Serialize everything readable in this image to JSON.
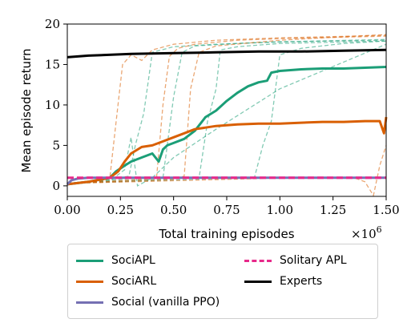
{
  "chart_data": {
    "type": "line",
    "xlabel": "Total training episodes",
    "x_multiplier_label": "×10",
    "x_multiplier_exp": "6",
    "ylabel": "Mean episode return",
    "xlim": [
      0,
      1.5
    ],
    "ylim": [
      -1.3,
      20
    ],
    "x_ticks": [
      0.0,
      0.25,
      0.5,
      0.75,
      1.0,
      1.25,
      1.5
    ],
    "x_tick_labels": [
      "0.00",
      "0.25",
      "0.50",
      "0.75",
      "1.00",
      "1.25",
      "1.50"
    ],
    "y_ticks": [
      0,
      5,
      10,
      15,
      20
    ],
    "y_tick_labels": [
      "0",
      "5",
      "10",
      "15",
      "20"
    ],
    "grid": false,
    "legend_position": "below",
    "series": [
      {
        "name": "SociAPL",
        "color": "#1b9e77",
        "style": "solid",
        "x": [
          0,
          0.1,
          0.2,
          0.23,
          0.27,
          0.3,
          0.35,
          0.4,
          0.43,
          0.45,
          0.47,
          0.5,
          0.55,
          0.6,
          0.65,
          0.7,
          0.75,
          0.8,
          0.85,
          0.9,
          0.94,
          0.96,
          1.0,
          1.1,
          1.2,
          1.3,
          1.4,
          1.5
        ],
        "y": [
          0.2,
          0.5,
          1.0,
          1.8,
          2.5,
          3.0,
          3.5,
          4.0,
          3.0,
          4.5,
          5.0,
          5.3,
          5.8,
          6.8,
          8.5,
          9.3,
          10.5,
          11.5,
          12.3,
          12.8,
          13.0,
          14.0,
          14.2,
          14.4,
          14.5,
          14.5,
          14.6,
          14.7
        ]
      },
      {
        "name": "SociARL",
        "color": "#d95f02",
        "style": "solid",
        "x": [
          0,
          0.1,
          0.2,
          0.24,
          0.27,
          0.3,
          0.35,
          0.4,
          0.45,
          0.5,
          0.55,
          0.6,
          0.65,
          0.7,
          0.8,
          0.9,
          1.0,
          1.1,
          1.2,
          1.3,
          1.4,
          1.47,
          1.49,
          1.5
        ],
        "y": [
          0.2,
          0.5,
          1.0,
          1.8,
          3.0,
          4.0,
          4.8,
          5.0,
          5.5,
          6.0,
          6.5,
          7.0,
          7.2,
          7.4,
          7.6,
          7.7,
          7.7,
          7.8,
          7.9,
          7.9,
          8.0,
          8.0,
          6.5,
          8.5
        ]
      },
      {
        "name": "Social (vanilla PPO)",
        "color": "#7570b3",
        "style": "solid",
        "x": [
          0,
          0.02,
          0.05,
          0.1,
          0.3,
          0.6,
          0.9,
          1.2,
          1.5
        ],
        "y": [
          0.2,
          0.7,
          0.9,
          1.0,
          1.0,
          1.0,
          1.0,
          1.0,
          1.0
        ]
      },
      {
        "name": "Solitary APL",
        "color": "#e7298a",
        "style": "dashed",
        "x": [
          0,
          0.3,
          0.6,
          0.9,
          1.2,
          1.5
        ],
        "y": [
          1.0,
          1.0,
          1.0,
          1.0,
          1.0,
          1.0
        ]
      },
      {
        "name": "Experts",
        "color": "#000000",
        "style": "solid",
        "x": [
          0,
          0.1,
          0.3,
          0.5,
          0.7,
          0.9,
          1.1,
          1.3,
          1.5
        ],
        "y": [
          15.9,
          16.1,
          16.3,
          16.4,
          16.5,
          16.6,
          16.6,
          16.7,
          16.8
        ]
      }
    ],
    "seed_runs": [
      {
        "color": "#1b9e77",
        "x": [
          0,
          0.2,
          0.29,
          0.32,
          0.36,
          0.4,
          0.5,
          0.7,
          1.0,
          1.5
        ],
        "y": [
          0.3,
          0.8,
          1.2,
          5.0,
          9.0,
          16.5,
          17.2,
          17.5,
          17.8,
          18.0
        ]
      },
      {
        "color": "#1b9e77",
        "x": [
          0,
          0.3,
          0.45,
          0.48,
          0.5,
          0.54,
          0.6,
          0.8,
          1.0,
          1.5
        ],
        "y": [
          0.3,
          0.9,
          1.0,
          7.0,
          11.0,
          16.5,
          17.3,
          17.6,
          17.8,
          18.1
        ]
      },
      {
        "color": "#1b9e77",
        "x": [
          0,
          0.5,
          0.62,
          0.66,
          0.7,
          0.72,
          0.8,
          1.0,
          1.5
        ],
        "y": [
          0.3,
          0.9,
          1.0,
          8.0,
          12.0,
          16.8,
          17.2,
          17.6,
          17.9
        ]
      },
      {
        "color": "#1b9e77",
        "x": [
          0,
          0.7,
          0.88,
          0.92,
          0.96,
          1.0,
          1.1,
          1.3,
          1.5
        ],
        "y": [
          0.3,
          0.9,
          1.0,
          5.0,
          8.0,
          16.2,
          17.0,
          17.6,
          17.9
        ]
      },
      {
        "color": "#1b9e77",
        "x": [
          0,
          0.2,
          0.27,
          0.3,
          0.33,
          0.4,
          0.5,
          0.7,
          1.0,
          1.5
        ],
        "y": [
          0.3,
          0.6,
          2.0,
          6.0,
          0.0,
          1.0,
          3.5,
          7.0,
          12.0,
          17.5
        ]
      },
      {
        "color": "#d95f02",
        "x": [
          0,
          0.15,
          0.2,
          0.23,
          0.26,
          0.3,
          0.35,
          0.4,
          0.5,
          0.7,
          1.0,
          1.5
        ],
        "y": [
          0.3,
          0.5,
          1.0,
          8.0,
          15.0,
          16.2,
          15.5,
          16.8,
          17.5,
          18.0,
          18.3,
          18.6
        ]
      },
      {
        "color": "#d95f02",
        "x": [
          0,
          0.35,
          0.42,
          0.45,
          0.48,
          0.52,
          0.6,
          0.8,
          1.0,
          1.5
        ],
        "y": [
          0.3,
          0.8,
          1.0,
          10.0,
          16.0,
          17.0,
          17.5,
          18.0,
          18.2,
          18.5
        ]
      },
      {
        "color": "#d95f02",
        "x": [
          0,
          0.5,
          0.55,
          0.58,
          0.62,
          0.7,
          1.0,
          1.2,
          1.5
        ],
        "y": [
          0.3,
          0.8,
          1.2,
          12.0,
          16.5,
          17.3,
          18.0,
          18.3,
          18.7
        ]
      },
      {
        "color": "#d95f02",
        "x": [
          0,
          0.9,
          1.0,
          1.2,
          1.35,
          1.4,
          1.44,
          1.47,
          1.5
        ],
        "y": [
          0.3,
          0.9,
          1.0,
          1.0,
          1.0,
          0.5,
          -1.2,
          2.5,
          5.0
        ]
      }
    ]
  }
}
